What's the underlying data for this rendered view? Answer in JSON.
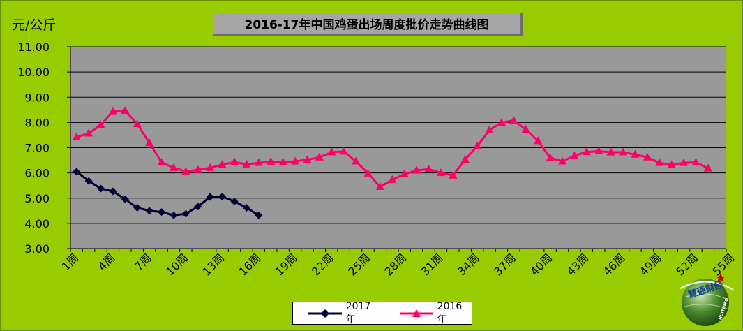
{
  "chart_data": {
    "type": "line",
    "title": "2016-17年中国鸡蛋出场周度批价走势曲线图",
    "ylabel": "元/公斤",
    "ylim": [
      3,
      11
    ],
    "yticks": [
      "3.00",
      "4.00",
      "5.00",
      "6.00",
      "7.00",
      "8.00",
      "9.00",
      "10.00",
      "11.00"
    ],
    "x_categories_count": 54,
    "xtick_labels": [
      "1周",
      "4周",
      "7周",
      "10周",
      "13周",
      "16周",
      "19周",
      "22周",
      "25周",
      "28周",
      "31周",
      "34周",
      "37周",
      "40周",
      "43周",
      "46周",
      "49周",
      "52周",
      "55周"
    ],
    "grid": true,
    "legend_position": "bottom",
    "series": [
      {
        "name": "2017年",
        "color": "#000033",
        "marker": "diamond",
        "values": [
          6.05,
          5.68,
          5.38,
          5.27,
          4.96,
          4.62,
          4.5,
          4.45,
          4.32,
          4.38,
          4.67,
          5.05,
          5.06,
          4.87,
          4.62,
          4.32
        ]
      },
      {
        "name": "2016年",
        "color": "#ff0066",
        "marker": "triangle",
        "values": [
          7.42,
          7.57,
          7.9,
          8.45,
          8.47,
          7.94,
          7.19,
          6.42,
          6.2,
          6.06,
          6.12,
          6.2,
          6.33,
          6.43,
          6.34,
          6.4,
          6.45,
          6.42,
          6.46,
          6.52,
          6.62,
          6.82,
          6.85,
          6.46,
          5.98,
          5.45,
          5.73,
          5.95,
          6.1,
          6.15,
          6.0,
          5.9,
          6.53,
          7.06,
          7.7,
          7.99,
          8.08,
          7.72,
          7.27,
          6.6,
          6.46,
          6.68,
          6.83,
          6.86,
          6.82,
          6.82,
          6.73,
          6.62,
          6.4,
          6.32,
          6.4,
          6.42,
          6.18
        ]
      }
    ]
  },
  "logo": {
    "text": "慧通财经",
    "arc_text": "HUITINFO"
  }
}
